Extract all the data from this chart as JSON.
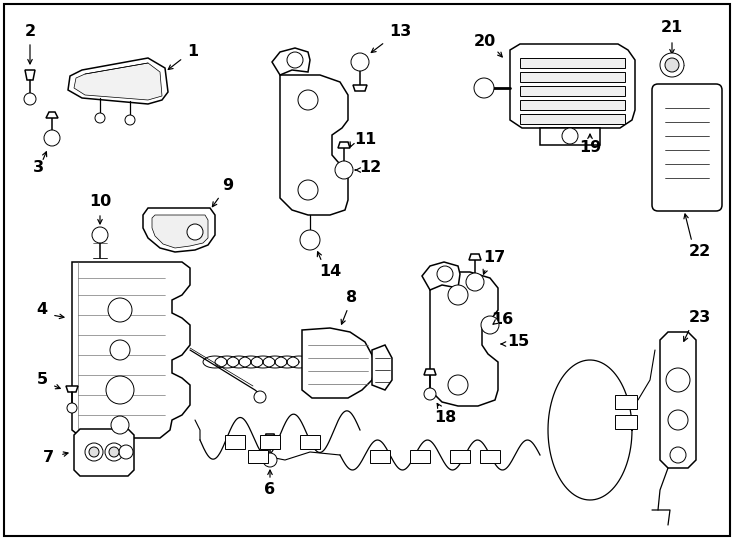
{
  "figsize": [
    7.34,
    5.4
  ],
  "dpi": 100,
  "bg": "#ffffff",
  "lc": "#1a1a1a",
  "parts": {
    "label_fontsize": 11.5,
    "arrow_lw": 0.9
  }
}
